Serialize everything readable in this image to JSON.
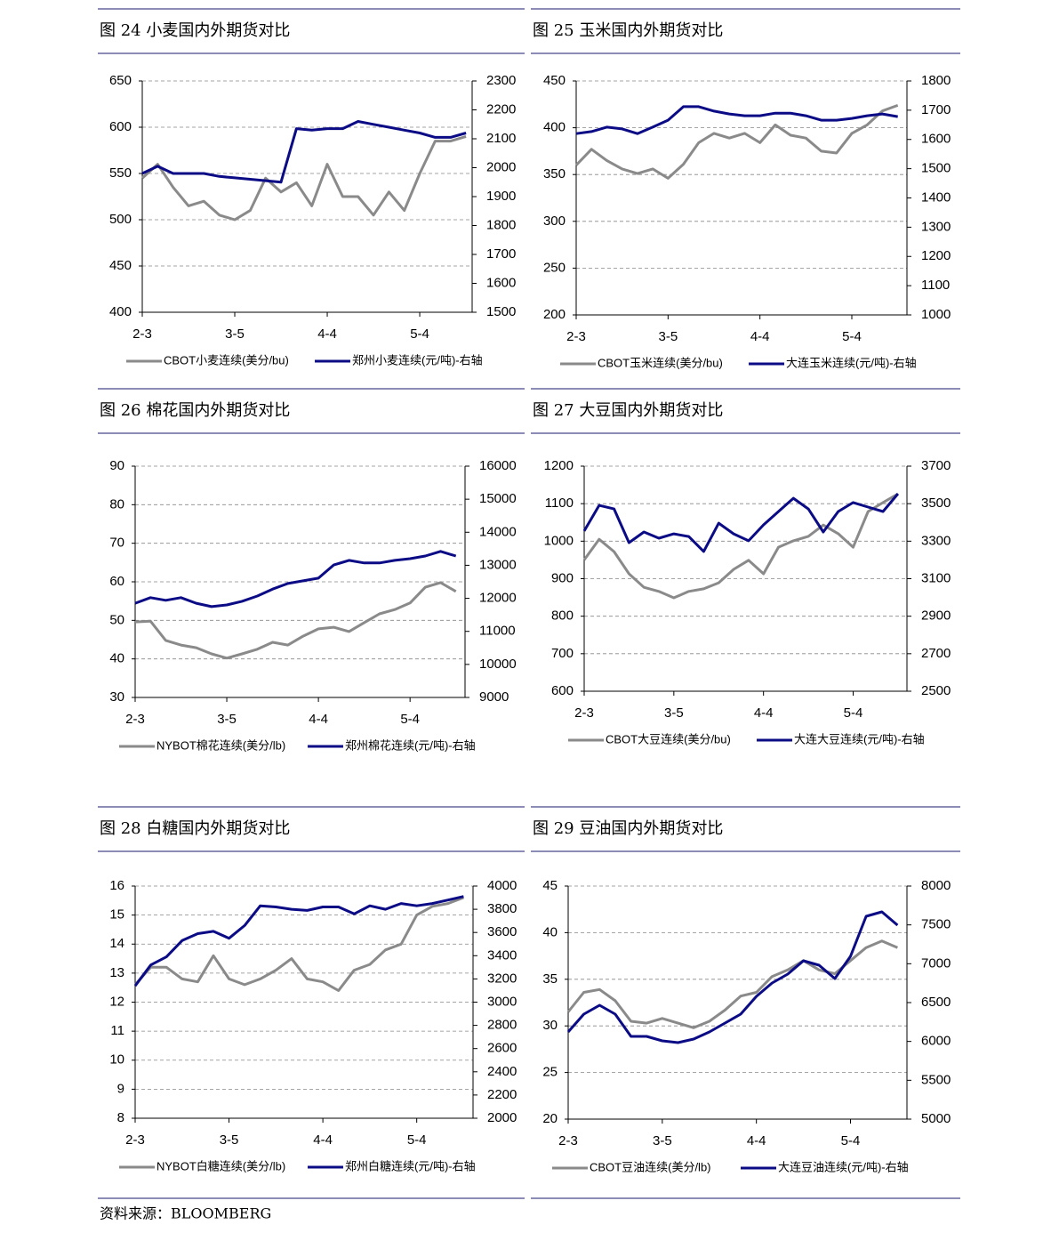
{
  "chart_data": [
    {
      "type": "line",
      "title": "图 24  小麦国内外期货对比",
      "x": [
        0,
        5,
        10,
        15,
        20,
        25,
        30,
        35,
        40,
        45,
        50,
        55,
        60,
        65,
        70,
        75,
        80,
        85,
        90,
        95,
        100,
        105
      ],
      "xlim": [
        0,
        107
      ],
      "xticks": [
        {
          "value": 0,
          "label": "2-3"
        },
        {
          "value": 30,
          "label": "3-5"
        },
        {
          "value": 60,
          "label": "4-4"
        },
        {
          "value": 90,
          "label": "5-4"
        }
      ],
      "ylim": [
        400,
        650
      ],
      "yticks": [
        400,
        450,
        500,
        550,
        600,
        650
      ],
      "y2lim": [
        1500,
        2300
      ],
      "y2ticks": [
        1500,
        1600,
        1700,
        1800,
        1900,
        2000,
        2100,
        2200,
        2300
      ],
      "grid": true,
      "series": [
        {
          "name": "CBOT小麦连续(美分/bu)",
          "color": "#8a8a8a",
          "values": [
            545,
            560,
            535,
            515,
            520,
            505,
            500,
            510,
            545,
            530,
            540,
            515,
            560,
            525,
            525,
            505,
            530,
            510,
            550,
            585,
            585,
            590
          ]
        },
        {
          "name": "郑州小麦连续(元/吨)-右轴",
          "color": "#0b0b86",
          "axis": "y2",
          "values": [
            1980,
            2005,
            1980,
            1980,
            1980,
            1970,
            1965,
            1960,
            1955,
            1950,
            2135,
            2130,
            2135,
            2135,
            2160,
            2150,
            2140,
            2130,
            2120,
            2105,
            2105,
            2120
          ]
        }
      ]
    },
    {
      "type": "line",
      "title": "图 25  玉米国内外期货对比",
      "x": [
        0,
        5,
        10,
        15,
        20,
        25,
        30,
        35,
        40,
        45,
        50,
        55,
        60,
        65,
        70,
        75,
        80,
        85,
        90,
        95,
        100,
        105
      ],
      "xlim": [
        0,
        108
      ],
      "xticks": [
        {
          "value": 0,
          "label": "2-3"
        },
        {
          "value": 30,
          "label": "3-5"
        },
        {
          "value": 60,
          "label": "4-4"
        },
        {
          "value": 90,
          "label": "5-4"
        }
      ],
      "ylim": [
        200,
        450
      ],
      "yticks": [
        200,
        250,
        300,
        350,
        400,
        450
      ],
      "y2lim": [
        1000,
        1800
      ],
      "y2ticks": [
        1000,
        1100,
        1200,
        1300,
        1400,
        1500,
        1600,
        1700,
        1800
      ],
      "grid": true,
      "series": [
        {
          "name": "CBOT玉米连续(美分/bu)",
          "color": "#8a8a8a",
          "values": [
            360,
            377,
            365,
            356,
            351,
            356,
            346,
            361,
            384,
            394,
            389,
            394,
            384,
            403,
            392,
            389,
            375,
            373,
            394,
            403,
            418,
            424
          ]
        },
        {
          "name": "大连玉米连续(元/吨)-右轴",
          "color": "#0b0b86",
          "axis": "y2",
          "values": [
            1620,
            1627,
            1642,
            1636,
            1620,
            1642,
            1666,
            1712,
            1712,
            1697,
            1687,
            1681,
            1681,
            1690,
            1690,
            1681,
            1666,
            1666,
            1672,
            1681,
            1687,
            1678
          ]
        }
      ]
    },
    {
      "type": "line",
      "title": "图 26  棉花国内外期货对比",
      "x": [
        0,
        5,
        10,
        15,
        20,
        25,
        30,
        35,
        40,
        45,
        50,
        55,
        60,
        65,
        70,
        75,
        80,
        85,
        90,
        95,
        100,
        105
      ],
      "xlim": [
        0,
        108
      ],
      "xticks": [
        {
          "value": 0,
          "label": "2-3"
        },
        {
          "value": 30,
          "label": "3-5"
        },
        {
          "value": 60,
          "label": "4-4"
        },
        {
          "value": 90,
          "label": "5-4"
        }
      ],
      "ylim": [
        30,
        90
      ],
      "yticks": [
        30,
        40,
        50,
        60,
        70,
        80,
        90
      ],
      "y2lim": [
        9000,
        16000
      ],
      "y2ticks": [
        9000,
        10000,
        11000,
        12000,
        13000,
        14000,
        15000,
        16000
      ],
      "grid": true,
      "series": [
        {
          "name": "NYBOT棉花连续(美分/lb)",
          "color": "#8a8a8a",
          "values": [
            49.6,
            49.8,
            44.8,
            43.6,
            42.9,
            41.3,
            40.2,
            41.3,
            42.5,
            44.3,
            43.6,
            45.9,
            47.8,
            48.2,
            47.1,
            49.4,
            51.7,
            52.8,
            54.5,
            58.6,
            59.8,
            57.5
          ]
        },
        {
          "name": "郑州棉花连续(元/吨)-右轴",
          "color": "#0b0b86",
          "axis": "y2",
          "values": [
            11850,
            12020,
            11940,
            12020,
            11850,
            11750,
            11800,
            11910,
            12070,
            12280,
            12450,
            12530,
            12610,
            13010,
            13150,
            13070,
            13070,
            13150,
            13200,
            13280,
            13420,
            13280
          ]
        }
      ]
    },
    {
      "type": "line",
      "title": "图 27  大豆国内外期货对比",
      "x": [
        0,
        5,
        10,
        15,
        20,
        25,
        30,
        35,
        40,
        45,
        50,
        55,
        60,
        65,
        70,
        75,
        80,
        85,
        90,
        95,
        100,
        105
      ],
      "xlim": [
        0,
        108
      ],
      "xticks": [
        {
          "value": 0,
          "label": "2-3"
        },
        {
          "value": 30,
          "label": "3-5"
        },
        {
          "value": 60,
          "label": "4-4"
        },
        {
          "value": 90,
          "label": "5-4"
        }
      ],
      "ylim": [
        600,
        1200
      ],
      "yticks": [
        600,
        700,
        800,
        900,
        1000,
        1100,
        1200
      ],
      "y2lim": [
        2500,
        3700
      ],
      "y2ticks": [
        2500,
        2700,
        2900,
        3100,
        3300,
        3500,
        3700
      ],
      "grid": true,
      "series": [
        {
          "name": "CBOT大豆连续(美分/bu)",
          "color": "#8a8a8a",
          "values": [
            950,
            1005,
            972,
            913,
            877,
            866,
            849,
            866,
            873,
            889,
            925,
            949,
            913,
            984,
            1001,
            1013,
            1043,
            1020,
            984,
            1079,
            1103,
            1126
          ]
        },
        {
          "name": "大连大豆连续(元/吨)-右轴",
          "color": "#0b0b86",
          "axis": "y2",
          "values": [
            3354,
            3491,
            3472,
            3292,
            3349,
            3316,
            3339,
            3325,
            3245,
            3396,
            3339,
            3302,
            3387,
            3458,
            3529,
            3472,
            3349,
            3458,
            3506,
            3482,
            3458,
            3553
          ]
        }
      ]
    },
    {
      "type": "line",
      "title": "图 28  白糖国内外期货对比",
      "x": [
        0,
        5,
        10,
        15,
        20,
        25,
        30,
        35,
        40,
        45,
        50,
        55,
        60,
        65,
        70,
        75,
        80,
        85,
        90,
        95,
        100,
        105
      ],
      "xlim": [
        0,
        108
      ],
      "xticks": [
        {
          "value": 0,
          "label": "2-3"
        },
        {
          "value": 30,
          "label": "3-5"
        },
        {
          "value": 60,
          "label": "4-4"
        },
        {
          "value": 90,
          "label": "5-4"
        }
      ],
      "ylim": [
        8,
        16
      ],
      "yticks": [
        8,
        9,
        10,
        11,
        12,
        13,
        14,
        15,
        16
      ],
      "y2lim": [
        2000,
        4000
      ],
      "y2ticks": [
        2000,
        2200,
        2400,
        2600,
        2800,
        3000,
        3200,
        3400,
        3600,
        3800,
        4000
      ],
      "grid": true,
      "series": [
        {
          "name": "NYBOT白糖连续(美分/lb)",
          "color": "#8a8a8a",
          "values": [
            12.6,
            13.2,
            13.2,
            12.8,
            12.7,
            13.6,
            12.8,
            12.6,
            12.8,
            13.1,
            13.5,
            12.8,
            12.7,
            12.4,
            13.1,
            13.3,
            13.8,
            14.0,
            15.0,
            15.3,
            15.4,
            15.6
          ]
        },
        {
          "name": "郑州白糖连续(元/吨)-右轴",
          "color": "#0b0b86",
          "axis": "y2",
          "values": [
            3140,
            3320,
            3390,
            3530,
            3590,
            3610,
            3550,
            3660,
            3830,
            3820,
            3800,
            3790,
            3820,
            3820,
            3760,
            3830,
            3800,
            3850,
            3830,
            3850,
            3880,
            3910
          ]
        }
      ]
    },
    {
      "type": "line",
      "title": "图 29  豆油国内外期货对比",
      "x": [
        0,
        5,
        10,
        15,
        20,
        25,
        30,
        35,
        40,
        45,
        50,
        55,
        60,
        65,
        70,
        75,
        80,
        85,
        90,
        95,
        100,
        105
      ],
      "xlim": [
        0,
        108
      ],
      "xticks": [
        {
          "value": 0,
          "label": "2-3"
        },
        {
          "value": 30,
          "label": "3-5"
        },
        {
          "value": 60,
          "label": "4-4"
        },
        {
          "value": 90,
          "label": "5-4"
        }
      ],
      "ylim": [
        20,
        45
      ],
      "yticks": [
        20,
        25,
        30,
        35,
        40,
        45
      ],
      "y2lim": [
        5000,
        8000
      ],
      "y2ticks": [
        5000,
        5500,
        6000,
        6500,
        7000,
        7500,
        8000
      ],
      "grid": true,
      "series": [
        {
          "name": "CBOT豆油连续(美分/lb)",
          "color": "#8a8a8a",
          "values": [
            31.5,
            33.6,
            33.9,
            32.7,
            30.5,
            30.3,
            30.8,
            30.3,
            29.8,
            30.5,
            31.7,
            33.2,
            33.6,
            35.3,
            36.0,
            37.0,
            36.0,
            35.6,
            37.0,
            38.4,
            39.1,
            38.4
          ]
        },
        {
          "name": "大连豆油连续(元/吨)-右轴",
          "color": "#0b0b86",
          "axis": "y2",
          "values": [
            6122,
            6351,
            6466,
            6351,
            6065,
            6065,
            6008,
            5985,
            6031,
            6122,
            6237,
            6351,
            6580,
            6752,
            6866,
            7038,
            6981,
            6809,
            7095,
            7611,
            7668,
            7496
          ]
        }
      ]
    }
  ],
  "source": "资料来源：BLOOMBERG"
}
